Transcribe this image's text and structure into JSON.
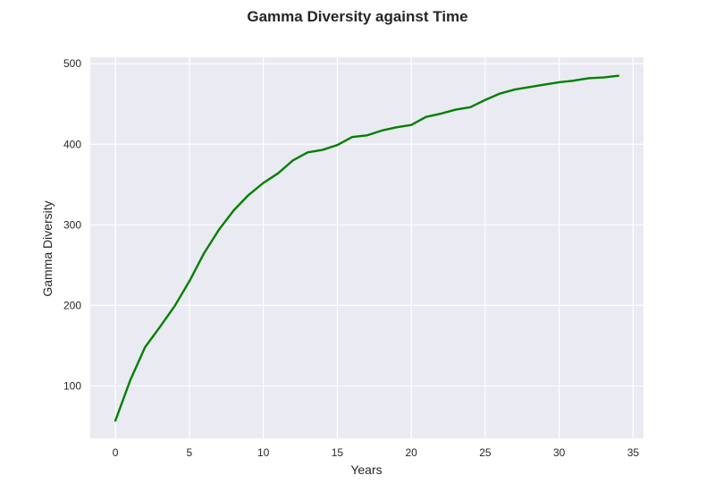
{
  "chart_data": {
    "type": "line",
    "title": "Gamma Diversity against Time",
    "xlabel": "Years",
    "ylabel": "Gamma Diversity",
    "xlim": [
      -1.7,
      35.7
    ],
    "ylim": [
      35,
      508
    ],
    "xticks": [
      0,
      5,
      10,
      15,
      20,
      25,
      30,
      35
    ],
    "yticks": [
      100,
      200,
      300,
      400,
      500
    ],
    "grid": true,
    "background": "#eaeaf2",
    "grid_color": "#ffffff",
    "series": [
      {
        "color": "#008000",
        "x": [
          0,
          1,
          2,
          3,
          4,
          5,
          6,
          7,
          8,
          9,
          10,
          11,
          12,
          13,
          14,
          15,
          16,
          17,
          18,
          19,
          20,
          21,
          22,
          23,
          24,
          25,
          26,
          27,
          28,
          29,
          30,
          31,
          32,
          33,
          34
        ],
        "values": [
          57,
          107,
          148,
          173,
          199,
          230,
          265,
          294,
          318,
          337,
          352,
          364,
          380,
          390,
          393,
          399,
          409,
          411,
          417,
          421,
          424,
          434,
          438,
          443,
          446,
          455,
          463,
          468,
          471,
          474,
          477,
          479,
          482,
          483,
          485
        ]
      }
    ]
  }
}
